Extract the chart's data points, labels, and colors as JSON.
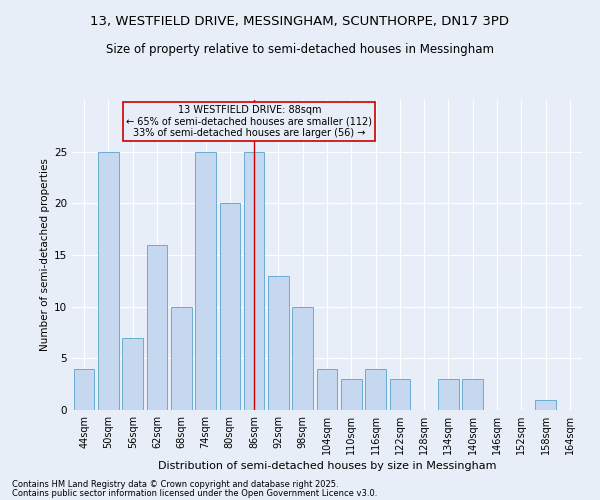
{
  "title_line1": "13, WESTFIELD DRIVE, MESSINGHAM, SCUNTHORPE, DN17 3PD",
  "title_line2": "Size of property relative to semi-detached houses in Messingham",
  "xlabel": "Distribution of semi-detached houses by size in Messingham",
  "ylabel": "Number of semi-detached properties",
  "footnote1": "Contains HM Land Registry data © Crown copyright and database right 2025.",
  "footnote2": "Contains public sector information licensed under the Open Government Licence v3.0.",
  "bar_labels": [
    "44sqm",
    "50sqm",
    "56sqm",
    "62sqm",
    "68sqm",
    "74sqm",
    "80sqm",
    "86sqm",
    "92sqm",
    "98sqm",
    "104sqm",
    "110sqm",
    "116sqm",
    "122sqm",
    "128sqm",
    "134sqm",
    "140sqm",
    "146sqm",
    "152sqm",
    "158sqm",
    "164sqm"
  ],
  "bar_values": [
    4,
    25,
    7,
    16,
    10,
    25,
    20,
    25,
    13,
    10,
    4,
    3,
    4,
    3,
    0,
    3,
    3,
    0,
    0,
    1,
    0
  ],
  "bar_color": "#c5d8f0",
  "bar_edge_color": "#6aabd2",
  "highlight_index": 7,
  "highlight_line_color": "#cc0000",
  "annotation_box_text": "13 WESTFIELD DRIVE: 88sqm\n← 65% of semi-detached houses are smaller (112)\n33% of semi-detached houses are larger (56) →",
  "annotation_box_edge_color": "#cc0000",
  "ylim": [
    0,
    30
  ],
  "yticks": [
    0,
    5,
    10,
    15,
    20,
    25
  ],
  "background_color": "#e8eef8",
  "grid_color": "#ffffff"
}
